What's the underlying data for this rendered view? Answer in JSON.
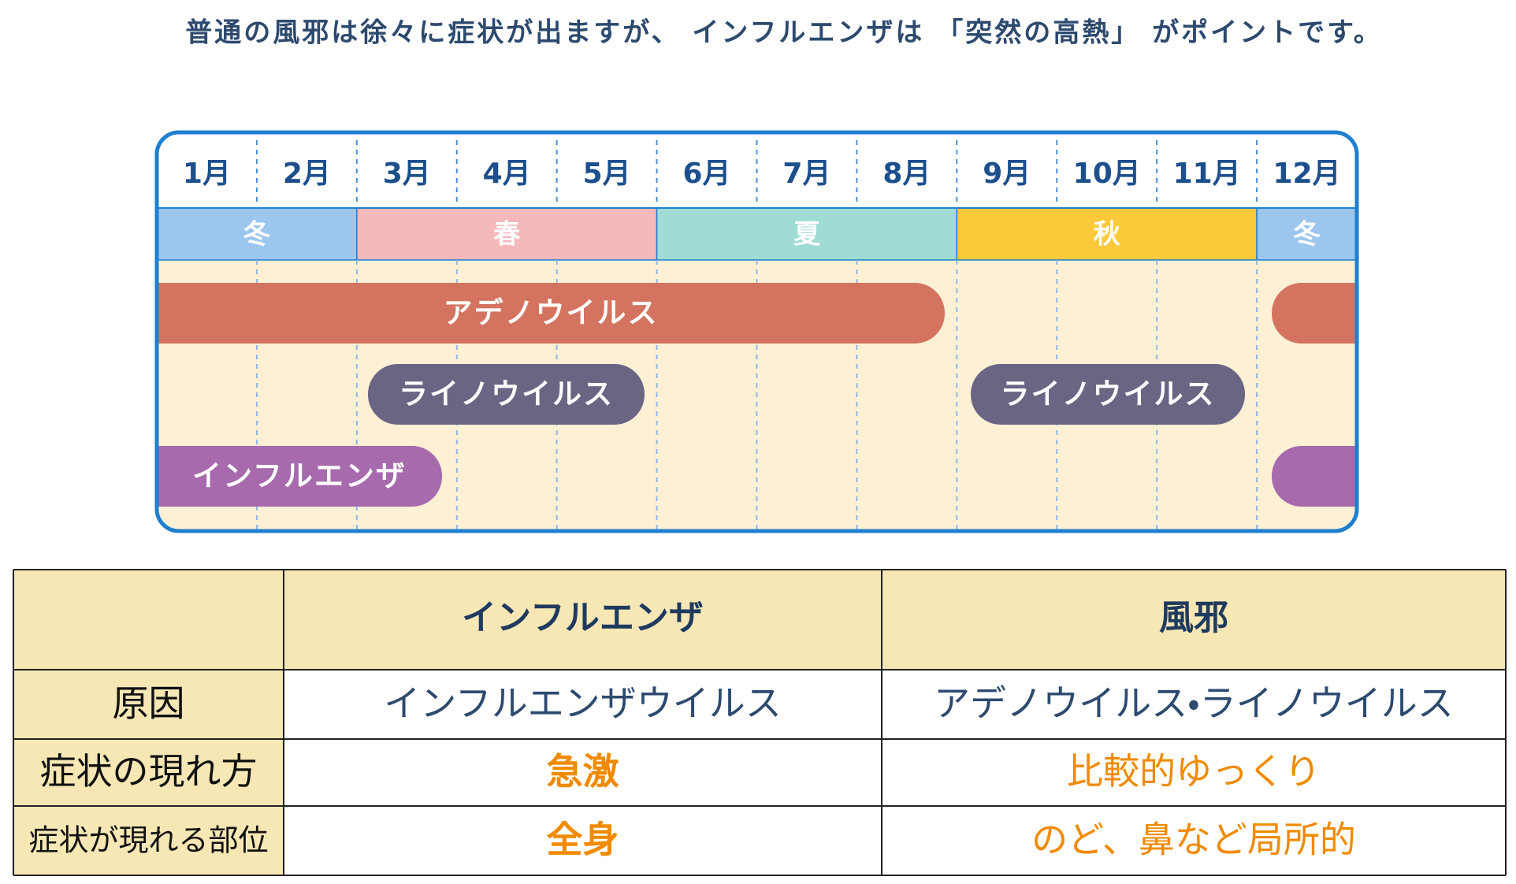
{
  "header": {
    "text": "普通の風邪は徐々に症状が出ますが、 インフルエンザは 「突然の高熱」 がポイントです。"
  },
  "calendar": {
    "months": [
      "1月",
      "2月",
      "3月",
      "4月",
      "5月",
      "6月",
      "7月",
      "8月",
      "9月",
      "10月",
      "11月",
      "12月"
    ],
    "seasons": [
      "冬",
      "春",
      "夏",
      "秋",
      "冬"
    ],
    "bars": [
      "アデノウイルス",
      "ライノウイルス",
      "ライノウイルス",
      "インフルエンザ"
    ]
  },
  "table": {
    "columns": [
      "インフルエンザ",
      "風邪"
    ],
    "rows": [
      [
        "原因",
        "インフルエンザウイルス",
        "アデノウイルス・ライノウイルス"
      ],
      [
        "症状の現れ方",
        "急激",
        "比較的ゆっくり"
      ],
      [
        "症状が現れる部位",
        "全身",
        "のど、鼻など局所的"
      ]
    ]
  }
}
